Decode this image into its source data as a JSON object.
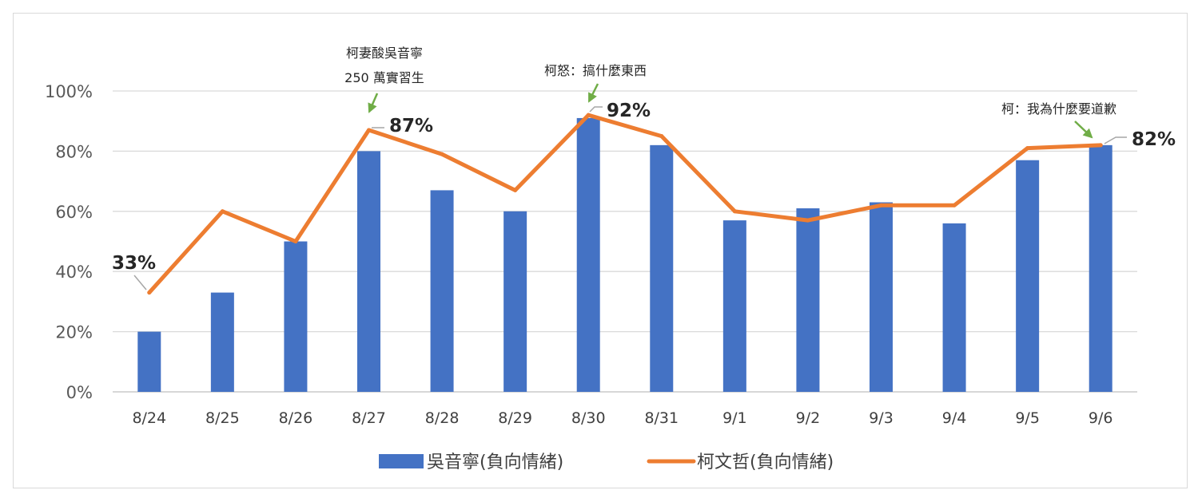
{
  "chart_data": {
    "type": "bar",
    "categories": [
      "8/24",
      "8/25",
      "8/26",
      "8/27",
      "8/28",
      "8/29",
      "8/30",
      "8/31",
      "9/1",
      "9/2",
      "9/3",
      "9/4",
      "9/5",
      "9/6"
    ],
    "series": [
      {
        "name": "吳音寧(負向情緒)",
        "type": "bar",
        "color": "#4472C4",
        "values": [
          20,
          33,
          50,
          80,
          67,
          60,
          91,
          82,
          57,
          61,
          63,
          56,
          77,
          82
        ]
      },
      {
        "name": "柯文哲(負向情緒)",
        "type": "line",
        "color": "#ED7D31",
        "values": [
          33,
          60,
          50,
          87,
          79,
          67,
          92,
          85,
          60,
          57,
          62,
          62,
          81,
          82
        ]
      }
    ],
    "ylim": [
      0,
      100
    ],
    "yticks": [
      "0%",
      "20%",
      "40%",
      "60%",
      "80%",
      "100%"
    ],
    "grid": true,
    "legend_position": "bottom",
    "data_labels": [
      {
        "series": 1,
        "index": 0,
        "text": "33%"
      },
      {
        "series": 1,
        "index": 3,
        "text": "87%"
      },
      {
        "series": 1,
        "index": 6,
        "text": "92%"
      },
      {
        "series": 1,
        "index": 13,
        "text": "82%"
      }
    ],
    "annotations": [
      {
        "index": 3,
        "lines": [
          "柯妻酸吳音寧",
          "250 萬實習生"
        ],
        "arrow_color": "#70AD47"
      },
      {
        "index": 6,
        "lines": [
          "柯怒：搞什麼東西"
        ],
        "arrow_color": "#70AD47"
      },
      {
        "index": 13,
        "lines": [
          "柯：我為什麼要道歉"
        ],
        "arrow_color": "#70AD47"
      }
    ]
  }
}
